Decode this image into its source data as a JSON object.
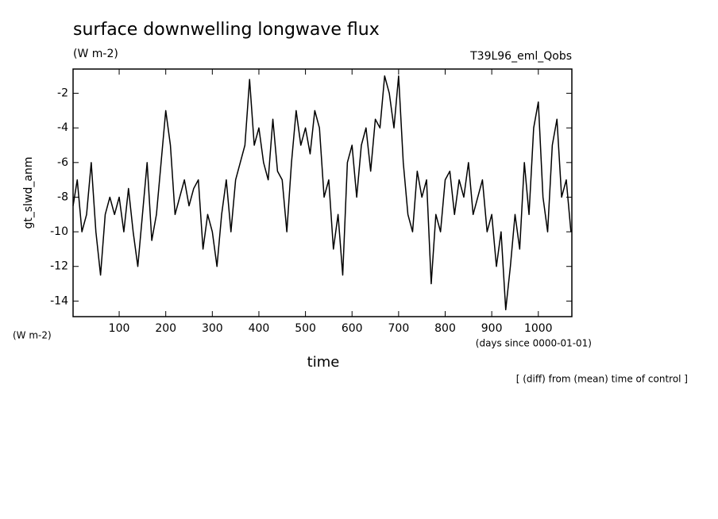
{
  "chart_data": {
    "type": "line",
    "title": "surface downwelling longwave flux",
    "units_top": "(W m-2)",
    "run_label": "T39L96_eml_Qobs",
    "y_label": "gt_slwd_anm",
    "units_bottom": "(W m-2)",
    "x_label": "time",
    "x_units": "(days since 0000-01-01)",
    "note": "[ (diff) from (mean) time of control ]",
    "xlim": [
      1,
      1072
    ],
    "ylim": [
      -14.9,
      -0.6
    ],
    "xticks": [
      100,
      200,
      300,
      400,
      500,
      600,
      700,
      800,
      900,
      1000
    ],
    "yticks": [
      -14,
      -12,
      -10,
      -8,
      -6,
      -4,
      -2
    ],
    "x": [
      1,
      10,
      20,
      30,
      40,
      50,
      60,
      70,
      80,
      90,
      100,
      110,
      120,
      130,
      140,
      150,
      160,
      170,
      180,
      190,
      200,
      210,
      220,
      230,
      240,
      250,
      260,
      270,
      280,
      290,
      300,
      310,
      320,
      330,
      340,
      350,
      360,
      370,
      380,
      390,
      400,
      410,
      420,
      430,
      440,
      450,
      460,
      470,
      480,
      490,
      500,
      510,
      520,
      530,
      540,
      550,
      560,
      570,
      580,
      590,
      600,
      610,
      620,
      630,
      640,
      650,
      660,
      670,
      680,
      690,
      700,
      710,
      720,
      730,
      740,
      750,
      760,
      770,
      780,
      790,
      800,
      810,
      820,
      830,
      840,
      850,
      860,
      870,
      880,
      890,
      900,
      910,
      920,
      930,
      940,
      950,
      960,
      970,
      980,
      990,
      1000,
      1010,
      1020,
      1030,
      1040,
      1050,
      1060,
      1070
    ],
    "series": [
      {
        "color": "#000000",
        "values": [
          -8.5,
          -7,
          -10,
          -9,
          -6,
          -10,
          -12.5,
          -9,
          -8,
          -9,
          -8,
          -10,
          -7.5,
          -10,
          -12,
          -9,
          -6,
          -10.5,
          -9,
          -6,
          -3,
          -5,
          -9,
          -8,
          -7,
          -8.5,
          -7.5,
          -7,
          -11,
          -9,
          -10,
          -12,
          -9,
          -7,
          -10,
          -7,
          -6,
          -5,
          -1.2,
          -5,
          -4,
          -6,
          -7,
          -3.5,
          -6.5,
          -7,
          -10,
          -6,
          -3,
          -5,
          -4,
          -5.5,
          -3,
          -4,
          -8,
          -7,
          -11,
          -9,
          -12.5,
          -6,
          -5,
          -8,
          -5,
          -4,
          -6.5,
          -3.5,
          -4,
          -1,
          -2,
          -4,
          -1,
          -6,
          -9,
          -10,
          -6.5,
          -8,
          -7,
          -13,
          -9,
          -10,
          -7,
          -6.5,
          -9,
          -7,
          -8,
          -6,
          -9,
          -8,
          -7,
          -10,
          -9,
          -12,
          -10,
          -14.5,
          -12,
          -9,
          -11,
          -6,
          -9,
          -4,
          -2.5,
          -8,
          -10,
          -5,
          -3.5,
          -8,
          -7,
          -10
        ]
      }
    ]
  }
}
